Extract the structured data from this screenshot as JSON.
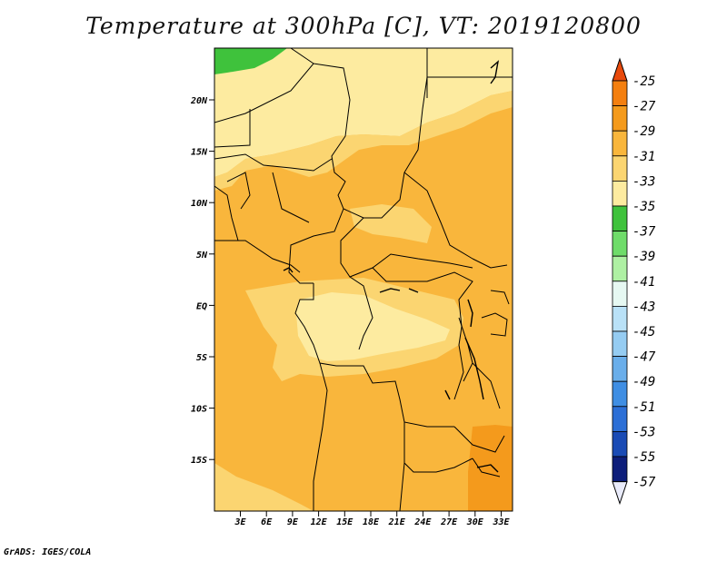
{
  "title": "Temperature at 300hPa [C], VT: 2019120800",
  "credit": "GrADS: IGES/COLA",
  "map": {
    "lat_ticks": [
      "20N",
      "15N",
      "10N",
      "5N",
      "EQ",
      "5S",
      "10S",
      "15S"
    ],
    "lon_ticks": [
      "3E",
      "6E",
      "9E",
      "12E",
      "15E",
      "18E",
      "21E",
      "24E",
      "27E",
      "30E",
      "33E"
    ],
    "colors": {
      "z33_35": "#fdeba0",
      "z31_33": "#fbd571",
      "z29_31": "#f9b63c",
      "z27_29": "#f49a1c",
      "z35_37": "#3fc23c",
      "border": "#000000"
    }
  },
  "colorbar": {
    "labels": [
      "-25",
      "-27",
      "-29",
      "-31",
      "-33",
      "-35",
      "-37",
      "-39",
      "-41",
      "-43",
      "-45",
      "-47",
      "-49",
      "-51",
      "-53",
      "-55",
      "-57"
    ],
    "colors": [
      "#e84a0c",
      "#f47f0f",
      "#f49a1c",
      "#f9b63c",
      "#fbd571",
      "#fdeba0",
      "#3fc23c",
      "#6fdc6a",
      "#aef0a3",
      "#e6f8f2",
      "#b9e1f7",
      "#95ccf2",
      "#6aaeea",
      "#3f8ee3",
      "#2c6fd6",
      "#1a4bb5",
      "#0d1e7a",
      "#e9ebfa"
    ]
  }
}
